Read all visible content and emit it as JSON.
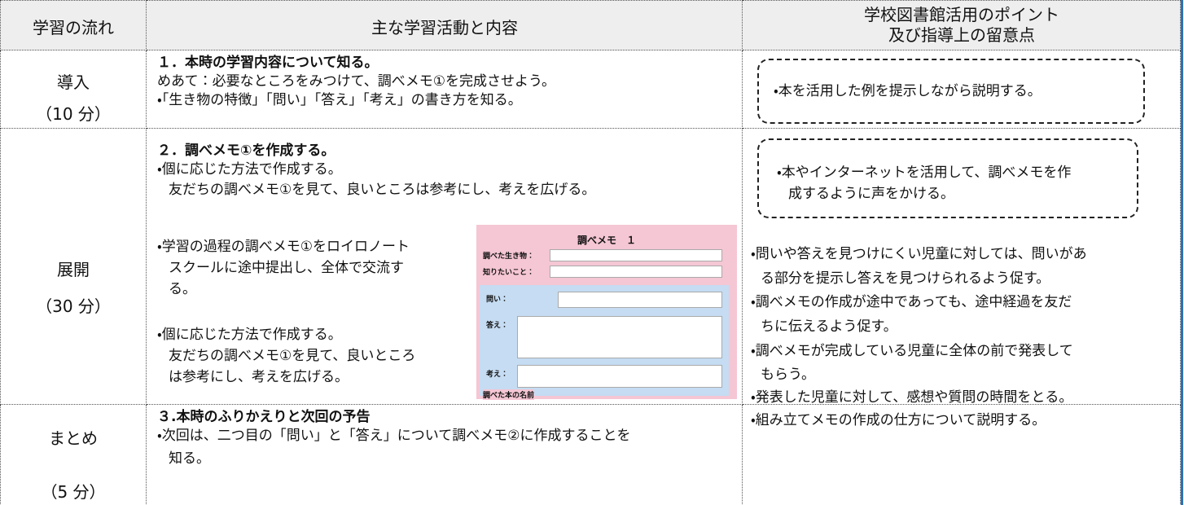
{
  "header": {
    "stage": "学習の流れ",
    "activity": "主な学習活動と内容",
    "points": [
      "学校図書館活用のポイント",
      "及び指導上の留意点"
    ]
  },
  "rows": [
    {
      "stage": "導入",
      "time": "（10 分）",
      "activity": {
        "heading": "１．本時の学習内容について知る。",
        "lines": [
          "めあて：必要なところをみつけて、調べメモ①を完成させよう。",
          "・「生き物の特徴」「問い」「答え」「考え」の書き方を知る。"
        ]
      },
      "points": {
        "boxed": [
          "・本を活用した例を提示しながら説明する。"
        ]
      }
    },
    {
      "stage": "展開",
      "time": "（30 分）",
      "activity": {
        "heading": "２．調べメモ①を作成する。",
        "lines": [
          "・個に応じた方法で作成する。",
          "友だちの調べメモ①を見て、良いところは参考にし、考えを広げる。"
        ],
        "side": [
          [
            "・学習の過程の調べメモ①をロイロノート",
            "スクールに途中提出し、全体で交流す",
            "る。"
          ],
          [
            "・個に応じた方法で作成する。",
            "友だちの調べメモ①を見て、良いところ",
            "は参考にし、考えを広げる。"
          ]
        ],
        "figure": {
          "title": "調べメモ　１",
          "fields": [
            "調べた生き物：",
            "知りたいこと：",
            "問い：",
            "答え：",
            "考え：",
            "調べた本の名前"
          ]
        }
      },
      "points": {
        "boxed": [
          "・本やインターネットを活用して、調べメモを作",
          "成するように声をかける。"
        ],
        "lines": [
          "・問いや答えを見つけにくい児童に対しては、問いがあ",
          "る部分を提示し答えを見つけられるよう促す。",
          "・調べメモの作成が途中であっても、途中経過を友だ",
          "ちに伝えるよう促す。",
          "・調べメモが完成している児童に全体の前で発表して",
          "もらう。",
          "・発表した児童に対して、感想や質問の時間をとる。"
        ]
      }
    },
    {
      "stage": "まとめ",
      "time": "（5 分）",
      "activity": {
        "heading": "３.本時のふりかえりと次回の予告",
        "lines": [
          "・次回は、二つ目の「問い」と「答え」について調べメモ②に作成することを",
          "知る。"
        ]
      },
      "points": {
        "lines": [
          "・組み立てメモの作成の仕方について説明する。"
        ]
      }
    }
  ]
}
